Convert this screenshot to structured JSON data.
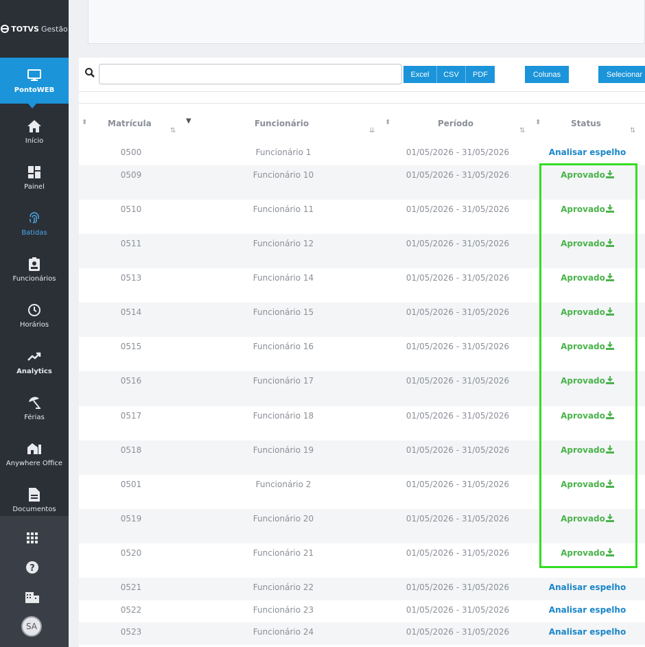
{
  "brand": {
    "name": "TOTVS",
    "product": "Gestão"
  },
  "sidebar": {
    "items": [
      {
        "label": "PontoWEB",
        "icon": "monitor-icon"
      },
      {
        "label": "Início",
        "icon": "home-icon"
      },
      {
        "label": "Painel",
        "icon": "dashboard-icon"
      },
      {
        "label": "Batidas",
        "icon": "fingerprint-icon"
      },
      {
        "label": "Funcionários",
        "icon": "badge-icon"
      },
      {
        "label": "Horários",
        "icon": "clock-icon"
      },
      {
        "label": "Analytics",
        "icon": "trend-icon"
      },
      {
        "label": "Férias",
        "icon": "beach-umbrella-icon"
      },
      {
        "label": "Anywhere Office",
        "icon": "home-office-icon"
      },
      {
        "label": "Documentos",
        "icon": "document-icon"
      }
    ],
    "bottom": {
      "apps_icon": "grid-icon",
      "help_icon": "help-icon",
      "company_icon": "building-icon",
      "avatar": "SA"
    }
  },
  "toolbar": {
    "search_placeholder": "",
    "excel": "Excel",
    "csv": "CSV",
    "pdf": "PDF",
    "columns": "Colunas",
    "select": "Selecionar"
  },
  "table": {
    "headers": {
      "matricula": "Matrícula",
      "funcionario": "Funcionário",
      "periodo": "Período",
      "status": "Status"
    },
    "rows": [
      {
        "matricula": "0500",
        "funcionario": "Funcionário 1",
        "periodo": "01/05/2026 - 31/05/2026",
        "status": "Analisar espelho",
        "type": "review"
      },
      {
        "matricula": "0509",
        "funcionario": "Funcionário 10",
        "periodo": "01/05/2026 - 31/05/2026",
        "status": "Aprovado",
        "type": "approved"
      },
      {
        "matricula": "0510",
        "funcionario": "Funcionário 11",
        "periodo": "01/05/2026 - 31/05/2026",
        "status": "Aprovado",
        "type": "approved"
      },
      {
        "matricula": "0511",
        "funcionario": "Funcionário 12",
        "periodo": "01/05/2026 - 31/05/2026",
        "status": "Aprovado",
        "type": "approved"
      },
      {
        "matricula": "0513",
        "funcionario": "Funcionário 14",
        "periodo": "01/05/2026 - 31/05/2026",
        "status": "Aprovado",
        "type": "approved"
      },
      {
        "matricula": "0514",
        "funcionario": "Funcionário 15",
        "periodo": "01/05/2026 - 31/05/2026",
        "status": "Aprovado",
        "type": "approved"
      },
      {
        "matricula": "0515",
        "funcionario": "Funcionário 16",
        "periodo": "01/05/2026 - 31/05/2026",
        "status": "Aprovado",
        "type": "approved"
      },
      {
        "matricula": "0516",
        "funcionario": "Funcionário 17",
        "periodo": "01/05/2026 - 31/05/2026",
        "status": "Aprovado",
        "type": "approved"
      },
      {
        "matricula": "0517",
        "funcionario": "Funcionário 18",
        "periodo": "01/05/2026 - 31/05/2026",
        "status": "Aprovado",
        "type": "approved"
      },
      {
        "matricula": "0518",
        "funcionario": "Funcionário 19",
        "periodo": "01/05/2026 - 31/05/2026",
        "status": "Aprovado",
        "type": "approved"
      },
      {
        "matricula": "0501",
        "funcionario": "Funcionário 2",
        "periodo": "01/05/2026 - 31/05/2026",
        "status": "Aprovado",
        "type": "approved"
      },
      {
        "matricula": "0519",
        "funcionario": "Funcionário 20",
        "periodo": "01/05/2026 - 31/05/2026",
        "status": "Aprovado",
        "type": "approved"
      },
      {
        "matricula": "0520",
        "funcionario": "Funcionário 21",
        "periodo": "01/05/2026 - 31/05/2026",
        "status": "Aprovado",
        "type": "approved"
      },
      {
        "matricula": "0521",
        "funcionario": "Funcionário 22",
        "periodo": "01/05/2026 - 31/05/2026",
        "status": "Analisar espelho",
        "type": "review"
      },
      {
        "matricula": "0522",
        "funcionario": "Funcionário 23",
        "periodo": "01/05/2026 - 31/05/2026",
        "status": "Analisar espelho",
        "type": "review"
      },
      {
        "matricula": "0523",
        "funcionario": "Funcionário 24",
        "periodo": "01/05/2026 - 31/05/2026",
        "status": "Analisar espelho",
        "type": "review"
      }
    ]
  },
  "colors": {
    "accent": "#1b94d9",
    "approved": "#49b34a",
    "review_link": "#1a86c8",
    "highlight": "#33dd22",
    "sidebar": "#2b2f36"
  }
}
